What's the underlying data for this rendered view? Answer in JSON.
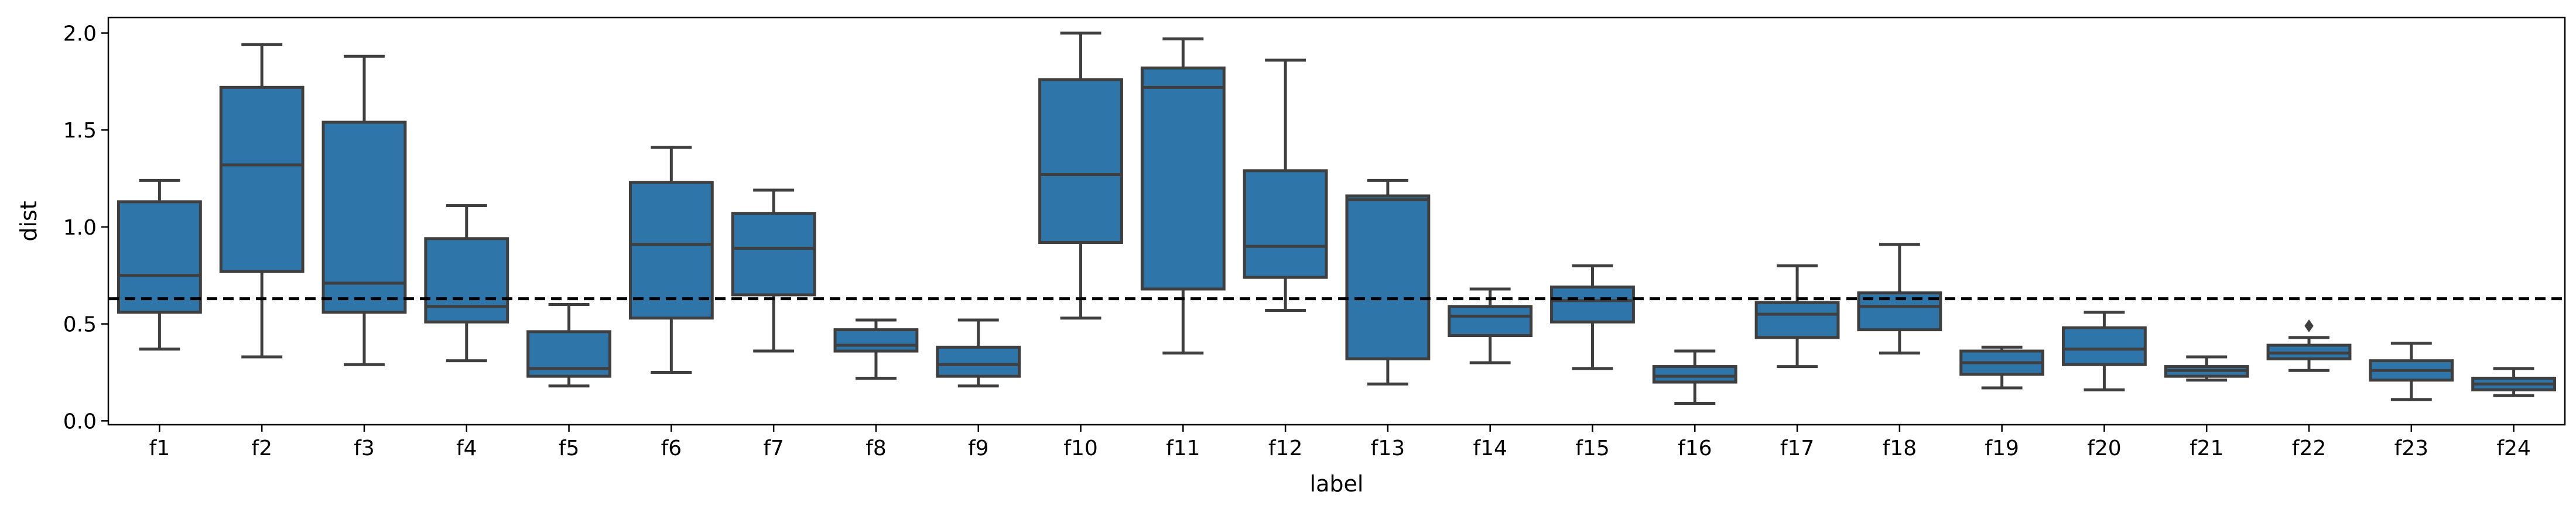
{
  "chart_data": {
    "type": "box",
    "xlabel": "label",
    "ylabel": "dist",
    "ylim": [
      -0.02,
      2.08
    ],
    "yticks": [
      "0.0",
      "0.5",
      "1.0",
      "1.5",
      "2.0"
    ],
    "reference_line": {
      "y": 0.63,
      "style": "dashed",
      "color": "#000000"
    },
    "box_color": "#2e75a9",
    "edge_color": "#3f3f3f",
    "grid": false,
    "boxes": [
      {
        "label": "f1",
        "whisker_low": 0.37,
        "q1": 0.56,
        "median": 0.75,
        "q3": 1.13,
        "whisker_high": 1.24,
        "outliers": []
      },
      {
        "label": "f2",
        "whisker_low": 0.33,
        "q1": 0.77,
        "median": 1.32,
        "q3": 1.72,
        "whisker_high": 1.94,
        "outliers": []
      },
      {
        "label": "f3",
        "whisker_low": 0.29,
        "q1": 0.56,
        "median": 0.71,
        "q3": 1.54,
        "whisker_high": 1.88,
        "outliers": []
      },
      {
        "label": "f4",
        "whisker_low": 0.31,
        "q1": 0.51,
        "median": 0.59,
        "q3": 0.94,
        "whisker_high": 1.11,
        "outliers": []
      },
      {
        "label": "f5",
        "whisker_low": 0.18,
        "q1": 0.23,
        "median": 0.27,
        "q3": 0.46,
        "whisker_high": 0.6,
        "outliers": []
      },
      {
        "label": "f6",
        "whisker_low": 0.25,
        "q1": 0.53,
        "median": 0.91,
        "q3": 1.23,
        "whisker_high": 1.41,
        "outliers": []
      },
      {
        "label": "f7",
        "whisker_low": 0.36,
        "q1": 0.65,
        "median": 0.89,
        "q3": 1.07,
        "whisker_high": 1.19,
        "outliers": []
      },
      {
        "label": "f8",
        "whisker_low": 0.22,
        "q1": 0.36,
        "median": 0.39,
        "q3": 0.47,
        "whisker_high": 0.52,
        "outliers": []
      },
      {
        "label": "f9",
        "whisker_low": 0.18,
        "q1": 0.23,
        "median": 0.29,
        "q3": 0.38,
        "whisker_high": 0.52,
        "outliers": []
      },
      {
        "label": "f10",
        "whisker_low": 0.53,
        "q1": 0.92,
        "median": 1.27,
        "q3": 1.76,
        "whisker_high": 2.0,
        "outliers": []
      },
      {
        "label": "f11",
        "whisker_low": 0.35,
        "q1": 0.68,
        "median": 1.72,
        "q3": 1.82,
        "whisker_high": 1.97,
        "outliers": []
      },
      {
        "label": "f12",
        "whisker_low": 0.57,
        "q1": 0.74,
        "median": 0.9,
        "q3": 1.29,
        "whisker_high": 1.86,
        "outliers": []
      },
      {
        "label": "f13",
        "whisker_low": 0.19,
        "q1": 0.32,
        "median": 1.14,
        "q3": 1.16,
        "whisker_high": 1.24,
        "outliers": []
      },
      {
        "label": "f14",
        "whisker_low": 0.3,
        "q1": 0.44,
        "median": 0.54,
        "q3": 0.59,
        "whisker_high": 0.68,
        "outliers": []
      },
      {
        "label": "f15",
        "whisker_low": 0.27,
        "q1": 0.51,
        "median": 0.62,
        "q3": 0.69,
        "whisker_high": 0.8,
        "outliers": []
      },
      {
        "label": "f16",
        "whisker_low": 0.09,
        "q1": 0.2,
        "median": 0.23,
        "q3": 0.28,
        "whisker_high": 0.36,
        "outliers": []
      },
      {
        "label": "f17",
        "whisker_low": 0.28,
        "q1": 0.43,
        "median": 0.55,
        "q3": 0.61,
        "whisker_high": 0.8,
        "outliers": []
      },
      {
        "label": "f18",
        "whisker_low": 0.35,
        "q1": 0.47,
        "median": 0.59,
        "q3": 0.66,
        "whisker_high": 0.91,
        "outliers": []
      },
      {
        "label": "f19",
        "whisker_low": 0.17,
        "q1": 0.24,
        "median": 0.3,
        "q3": 0.36,
        "whisker_high": 0.38,
        "outliers": []
      },
      {
        "label": "f20",
        "whisker_low": 0.16,
        "q1": 0.29,
        "median": 0.37,
        "q3": 0.48,
        "whisker_high": 0.56,
        "outliers": []
      },
      {
        "label": "f21",
        "whisker_low": 0.21,
        "q1": 0.23,
        "median": 0.26,
        "q3": 0.28,
        "whisker_high": 0.33,
        "outliers": []
      },
      {
        "label": "f22",
        "whisker_low": 0.26,
        "q1": 0.32,
        "median": 0.35,
        "q3": 0.39,
        "whisker_high": 0.43,
        "outliers": [
          0.49
        ]
      },
      {
        "label": "f23",
        "whisker_low": 0.11,
        "q1": 0.21,
        "median": 0.26,
        "q3": 0.31,
        "whisker_high": 0.4,
        "outliers": []
      },
      {
        "label": "f24",
        "whisker_low": 0.13,
        "q1": 0.16,
        "median": 0.19,
        "q3": 0.22,
        "whisker_high": 0.27,
        "outliers": []
      }
    ]
  }
}
